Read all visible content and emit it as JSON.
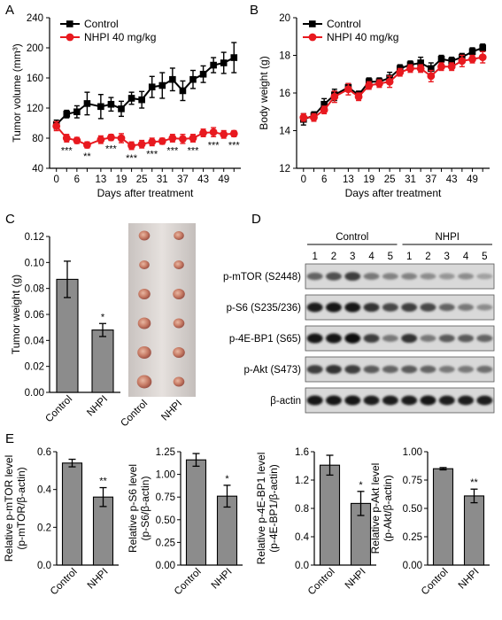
{
  "panels": {
    "A": "A",
    "B": "B",
    "C": "C",
    "D": "D",
    "E": "E"
  },
  "colors": {
    "control": "#000000",
    "treated": "#e8191f",
    "bar": "#8c8c8c"
  },
  "chart_data": [
    {
      "id": "A",
      "type": "line",
      "xlabel": "Days after treatment",
      "ylabel": "Tumor volume (mm³)",
      "ylim": [
        40,
        240
      ],
      "yticks": [
        "40",
        "80",
        "120",
        "160",
        "200",
        "240"
      ],
      "xticks": [
        "0",
        "6",
        "13",
        "19",
        "25",
        "31",
        "37",
        "43",
        "49"
      ],
      "x": [
        0,
        3,
        6,
        9,
        13,
        16,
        19,
        22,
        25,
        28,
        31,
        34,
        37,
        40,
        43,
        46,
        49,
        52
      ],
      "series": [
        {
          "name": "Control",
          "values": [
            98,
            112,
            115,
            126,
            122,
            125,
            119,
            133,
            131,
            148,
            150,
            158,
            143,
            158,
            165,
            177,
            180,
            187
          ],
          "errors": [
            6,
            5,
            8,
            15,
            16,
            9,
            10,
            8,
            11,
            14,
            17,
            15,
            13,
            12,
            11,
            10,
            14,
            20
          ]
        },
        {
          "name": "NHPI 40 mg/kg",
          "values": [
            96,
            80,
            77,
            71,
            78,
            81,
            80,
            70,
            72,
            75,
            76,
            80,
            79,
            80,
            87,
            88,
            85,
            86
          ],
          "errors": [
            6,
            5,
            4,
            4,
            5,
            4,
            6,
            5,
            5,
            5,
            4,
            5,
            6,
            5,
            5,
            6,
            5,
            4
          ]
        }
      ],
      "annotations": [
        {
          "x": 3,
          "text": "***"
        },
        {
          "x": 9,
          "text": "**"
        },
        {
          "x": 16,
          "text": "***"
        },
        {
          "x": 22,
          "text": "***"
        },
        {
          "x": 28,
          "text": "***"
        },
        {
          "x": 34,
          "text": "***"
        },
        {
          "x": 40,
          "text": "***"
        },
        {
          "x": 46,
          "text": "***"
        },
        {
          "x": 52,
          "text": "***"
        }
      ]
    },
    {
      "id": "B",
      "type": "line",
      "xlabel": "Days after treatment",
      "ylabel": "Body weight (g)",
      "ylim": [
        12,
        20
      ],
      "yticks": [
        "12",
        "14",
        "16",
        "18",
        "20"
      ],
      "xticks": [
        "0",
        "6",
        "13",
        "19",
        "25",
        "31",
        "37",
        "43",
        "49"
      ],
      "x": [
        0,
        3,
        6,
        9,
        13,
        16,
        19,
        22,
        25,
        28,
        31,
        34,
        37,
        40,
        43,
        46,
        49,
        52
      ],
      "series": [
        {
          "name": "Control",
          "values": [
            14.6,
            14.8,
            15.4,
            15.9,
            16.3,
            15.9,
            16.6,
            16.6,
            16.8,
            17.3,
            17.5,
            17.6,
            17.3,
            17.8,
            17.7,
            17.9,
            18.2,
            18.4
          ],
          "errors": [
            0.3,
            0.2,
            0.3,
            0.3,
            0.2,
            0.2,
            0.2,
            0.2,
            0.3,
            0.2,
            0.2,
            0.3,
            0.3,
            0.2,
            0.2,
            0.2,
            0.2,
            0.2
          ]
        },
        {
          "name": "NHPI 40 mg/kg",
          "values": [
            14.7,
            14.7,
            15.1,
            15.8,
            16.2,
            15.8,
            16.4,
            16.5,
            16.6,
            17.1,
            17.3,
            17.3,
            16.9,
            17.4,
            17.4,
            17.7,
            17.8,
            17.9
          ],
          "errors": [
            0.2,
            0.2,
            0.2,
            0.3,
            0.3,
            0.2,
            0.2,
            0.2,
            0.3,
            0.2,
            0.2,
            0.2,
            0.3,
            0.2,
            0.2,
            0.3,
            0.2,
            0.3
          ]
        }
      ]
    },
    {
      "id": "C",
      "type": "bar",
      "ylabel": "Tumor weight (g)",
      "categories": [
        "Control",
        "NHPI"
      ],
      "values": [
        0.087,
        0.048
      ],
      "errors": [
        0.014,
        0.005
      ],
      "sig": [
        "",
        "*"
      ],
      "ylim": [
        0,
        0.12
      ],
      "yticks": [
        "0.00",
        "0.02",
        "0.04",
        "0.06",
        "0.08",
        "0.10",
        "0.12"
      ]
    },
    {
      "id": "E1",
      "type": "bar",
      "ylabel": [
        "Relative p-mTOR level",
        "(p-mTOR/β-actin)"
      ],
      "categories": [
        "Control",
        "NHPI"
      ],
      "values": [
        0.54,
        0.36
      ],
      "errors": [
        0.02,
        0.05
      ],
      "sig": [
        "",
        "**"
      ],
      "ylim": [
        0,
        0.6
      ],
      "yticks": [
        "0.0",
        "0.2",
        "0.4",
        "0.6"
      ]
    },
    {
      "id": "E2",
      "type": "bar",
      "ylabel": [
        "Relative p-S6 level",
        "(p-S6/β-actin)"
      ],
      "categories": [
        "Control",
        "NHPI"
      ],
      "values": [
        1.16,
        0.76
      ],
      "errors": [
        0.07,
        0.12
      ],
      "sig": [
        "",
        "*"
      ],
      "ylim": [
        0,
        1.25
      ],
      "yticks": [
        "0.00",
        "0.25",
        "0.50",
        "0.75",
        "1.00",
        "1.25"
      ]
    },
    {
      "id": "E3",
      "type": "bar",
      "ylabel": [
        "Relative p-4E-BP1 level",
        "(p-4E-BP1/β-actin)"
      ],
      "categories": [
        "Control",
        "NHPI"
      ],
      "values": [
        1.41,
        0.87
      ],
      "errors": [
        0.14,
        0.17
      ],
      "sig": [
        "",
        "*"
      ],
      "ylim": [
        0,
        1.6
      ],
      "yticks": [
        "0.0",
        "0.4",
        "0.8",
        "1.2",
        "1.6"
      ]
    },
    {
      "id": "E4",
      "type": "bar",
      "ylabel": [
        "Relative p-Akt level",
        "(p-Akt/β-actin)"
      ],
      "categories": [
        "Control",
        "NHPI"
      ],
      "values": [
        0.85,
        0.61
      ],
      "errors": [
        0.01,
        0.06
      ],
      "sig": [
        "",
        "**"
      ],
      "ylim": [
        0,
        1.0
      ],
      "yticks": [
        "0.00",
        "0.25",
        "0.50",
        "0.75",
        "1.00"
      ]
    }
  ],
  "blot": {
    "groups": [
      "Control",
      "NHPI"
    ],
    "lanes": [
      "1",
      "2",
      "3",
      "4",
      "5",
      "1",
      "2",
      "3",
      "4",
      "5"
    ],
    "rows": [
      {
        "label": "p-mTOR (S2448)",
        "intensity": [
          0.55,
          0.65,
          0.75,
          0.45,
          0.4,
          0.4,
          0.35,
          0.3,
          0.35,
          0.25
        ]
      },
      {
        "label": "p-S6 (S235/236)",
        "intensity": [
          0.9,
          0.95,
          0.95,
          0.8,
          0.7,
          0.75,
          0.7,
          0.55,
          0.45,
          0.35
        ]
      },
      {
        "label": "p-4E-BP1 (S65)",
        "intensity": [
          0.95,
          0.95,
          1.0,
          0.75,
          0.45,
          0.8,
          0.45,
          0.6,
          0.6,
          0.55
        ]
      },
      {
        "label": "p-Akt (S473)",
        "intensity": [
          0.75,
          0.8,
          0.75,
          0.6,
          0.55,
          0.6,
          0.55,
          0.45,
          0.45,
          0.5
        ]
      },
      {
        "label": "β-actin",
        "intensity": [
          0.95,
          0.95,
          0.95,
          0.9,
          0.9,
          0.9,
          0.95,
          0.9,
          0.9,
          0.9
        ]
      }
    ]
  },
  "photo": {
    "rows": 6,
    "cols": 2,
    "categories": [
      "Control",
      "NHPI"
    ]
  }
}
